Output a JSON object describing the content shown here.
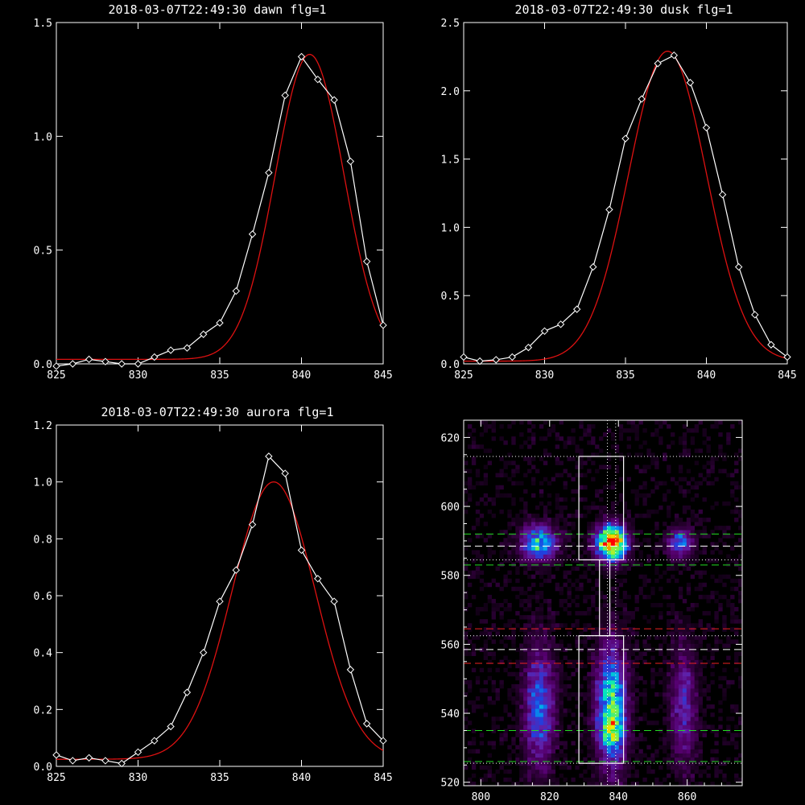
{
  "colors": {
    "background": "#000000",
    "axis": "#ffffff",
    "data_line": "#ffffff",
    "fit_line": "#dd1111",
    "guide_green": "#22dd22",
    "guide_red": "#ee2222",
    "guide_white": "#ffffff"
  },
  "chart_data": [
    {
      "id": "dawn",
      "type": "line",
      "title": "2018-03-07T22:49:30 dawn flg=1",
      "xlim": [
        825,
        845
      ],
      "ylim": [
        0,
        1.5
      ],
      "xticks": [
        "825",
        "830",
        "835",
        "840",
        "845"
      ],
      "yticks": [
        "0.0",
        "0.5",
        "1.0",
        "1.5"
      ],
      "xtick_values": [
        825,
        830,
        835,
        840,
        845
      ],
      "ytick_values": [
        0,
        0.5,
        1.0,
        1.5
      ],
      "fit": {
        "baseline": 0.02,
        "amplitude": 1.34,
        "center": 840.5,
        "sigma": 2.1
      },
      "series": [
        {
          "marker": "diamond",
          "x": [
            825,
            826,
            827,
            828,
            829,
            830,
            831,
            832,
            833,
            834,
            835,
            836,
            837,
            838,
            839,
            840,
            841,
            842,
            843,
            844,
            845
          ],
          "values": [
            -0.01,
            0.0,
            0.02,
            0.01,
            0.0,
            0.0,
            0.03,
            0.06,
            0.07,
            0.13,
            0.18,
            0.32,
            0.57,
            0.84,
            1.18,
            1.35,
            1.25,
            1.16,
            0.89,
            0.45,
            0.17
          ]
        }
      ]
    },
    {
      "id": "dusk",
      "type": "line",
      "title": "2018-03-07T22:49:30 dusk flg=1",
      "xlim": [
        825,
        845
      ],
      "ylim": [
        0,
        2.5
      ],
      "xticks": [
        "825",
        "830",
        "835",
        "840",
        "845"
      ],
      "yticks": [
        "0.0",
        "0.5",
        "1.0",
        "1.5",
        "2.0",
        "2.5"
      ],
      "xtick_values": [
        825,
        830,
        835,
        840,
        845
      ],
      "ytick_values": [
        0,
        0.5,
        1.0,
        1.5,
        2.0,
        2.5
      ],
      "fit": {
        "baseline": 0.02,
        "amplitude": 2.27,
        "center": 837.6,
        "sigma": 2.4
      },
      "series": [
        {
          "marker": "diamond",
          "x": [
            825,
            826,
            827,
            828,
            829,
            830,
            831,
            832,
            833,
            834,
            835,
            836,
            837,
            838,
            839,
            840,
            841,
            842,
            843,
            844,
            845
          ],
          "values": [
            0.05,
            0.02,
            0.03,
            0.05,
            0.12,
            0.24,
            0.29,
            0.4,
            0.71,
            1.13,
            1.65,
            1.94,
            2.2,
            2.26,
            2.06,
            1.73,
            1.24,
            0.71,
            0.36,
            0.14,
            0.05
          ]
        }
      ]
    },
    {
      "id": "aurora",
      "type": "line",
      "title": "2018-03-07T22:49:30 aurora flg=1",
      "xlim": [
        825,
        845
      ],
      "ylim": [
        0,
        1.2
      ],
      "xticks": [
        "825",
        "830",
        "835",
        "840",
        "845"
      ],
      "yticks": [
        "0.0",
        "0.2",
        "0.4",
        "0.6",
        "0.8",
        "1.0",
        "1.2"
      ],
      "xtick_values": [
        825,
        830,
        835,
        840,
        845
      ],
      "ytick_values": [
        0,
        0.2,
        0.4,
        0.6,
        0.8,
        1.0,
        1.2
      ],
      "fit": {
        "baseline": 0.025,
        "amplitude": 0.975,
        "center": 838.3,
        "sigma": 2.55
      },
      "series": [
        {
          "marker": "diamond",
          "x": [
            825,
            826,
            827,
            828,
            829,
            830,
            831,
            832,
            833,
            834,
            835,
            836,
            837,
            838,
            839,
            840,
            841,
            842,
            843,
            844,
            845
          ],
          "values": [
            0.04,
            0.02,
            0.03,
            0.02,
            0.01,
            0.05,
            0.09,
            0.14,
            0.26,
            0.4,
            0.58,
            0.69,
            0.85,
            1.09,
            1.03,
            0.76,
            0.66,
            0.58,
            0.34,
            0.15,
            0.09
          ]
        }
      ]
    },
    {
      "id": "image",
      "type": "heatmap",
      "title": "",
      "xlim": [
        795,
        876
      ],
      "ylim": [
        519,
        625
      ],
      "xticks": [
        "800",
        "820",
        "840",
        "860"
      ],
      "yticks": [
        "520",
        "540",
        "560",
        "580",
        "600",
        "620"
      ],
      "xtick_values": [
        800,
        820,
        840,
        860
      ],
      "ytick_values": [
        520,
        540,
        560,
        580,
        600,
        620
      ],
      "colormap": [
        "#000000",
        "#2a0033",
        "#55006e",
        "#6020a8",
        "#2040e0",
        "#00a0f0",
        "#00e8c0",
        "#60f060",
        "#f0f000",
        "#f08000",
        "#ff0000"
      ],
      "blobs": [
        {
          "x": 817,
          "y": 589.5,
          "sx": 3.5,
          "sy": 3.5,
          "amp": 0.55
        },
        {
          "x": 838,
          "y": 589.5,
          "sx": 3.0,
          "sy": 3.5,
          "amp": 1.0
        },
        {
          "x": 858,
          "y": 589.5,
          "sx": 2.5,
          "sy": 3.0,
          "amp": 0.4
        },
        {
          "x": 817,
          "y": 542,
          "sx": 3.0,
          "sy": 12.0,
          "amp": 0.4
        },
        {
          "x": 838,
          "y": 542,
          "sx": 3.0,
          "sy": 12.0,
          "amp": 0.62
        },
        {
          "x": 859,
          "y": 542,
          "sx": 2.5,
          "sy": 12.0,
          "amp": 0.28
        },
        {
          "x": 838,
          "y": 535,
          "sx": 2.5,
          "sy": 3.0,
          "amp": 0.25
        }
      ],
      "vlines": [
        {
          "x": 836.8,
          "style": "dotted",
          "color": "white"
        },
        {
          "x": 839.2,
          "style": "dotted",
          "color": "white"
        }
      ],
      "hlines": [
        {
          "y": 614.5,
          "style": "dotted",
          "color": "white"
        },
        {
          "y": 592,
          "style": "dashed",
          "color": "green"
        },
        {
          "y": 588.5,
          "style": "dashed",
          "color": "white"
        },
        {
          "y": 584.5,
          "style": "dotted",
          "color": "white"
        },
        {
          "y": 583,
          "style": "dashed",
          "color": "green"
        },
        {
          "y": 564.5,
          "style": "dashed",
          "color": "red"
        },
        {
          "y": 562.5,
          "style": "dotted",
          "color": "white"
        },
        {
          "y": 558.5,
          "style": "dashed",
          "color": "white"
        },
        {
          "y": 554.5,
          "style": "dashed",
          "color": "red"
        },
        {
          "y": 535,
          "style": "dashed",
          "color": "green"
        },
        {
          "y": 526,
          "style": "dashed",
          "color": "green"
        },
        {
          "y": 525.5,
          "style": "dotted",
          "color": "white"
        }
      ],
      "boxes": [
        {
          "x0": 828.5,
          "x1": 841.5,
          "y0": 584.5,
          "y1": 614.5
        },
        {
          "x0": 828.5,
          "x1": 841.5,
          "y0": 525.5,
          "y1": 562.5
        },
        {
          "x0": 834.5,
          "x1": 837.5,
          "y0": 562.5,
          "y1": 584.5
        }
      ]
    }
  ]
}
